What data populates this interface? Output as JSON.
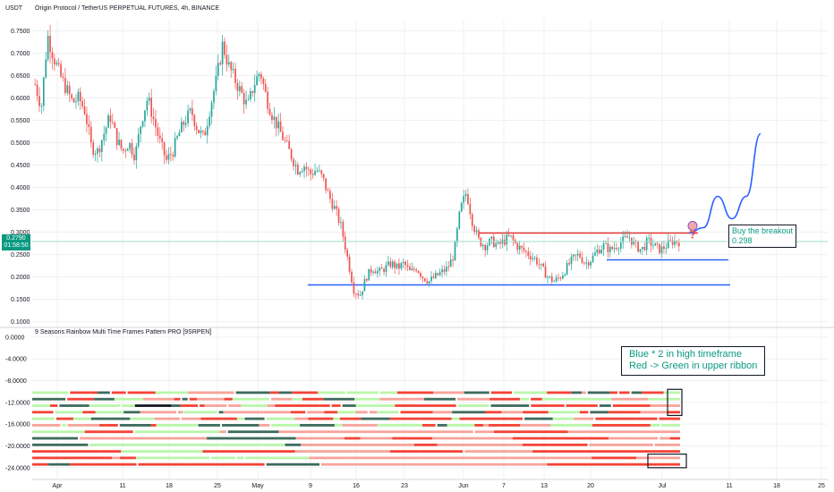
{
  "header": {
    "title": "Origin Protocol / TetherUS PERPETUAL FUTURES, 4h, BINANCE",
    "currency": "USDT"
  },
  "price_tag": {
    "price": "0.2790",
    "countdown": "01:58:50"
  },
  "indicator": {
    "title": "9 Seasons Rainbow Multi Time Frames Pattern PRO [9SRPEN]"
  },
  "annotations": {
    "breakout_line1": "Buy the breakout",
    "breakout_line2": "0.298",
    "question_mark": "?",
    "note_line1": "Blue * 2 in high timeframe",
    "note_line2": "Red -> Green in upper ribbon"
  },
  "colors": {
    "up": "#26a69a",
    "down": "#ef5350",
    "resistance": "#e53935",
    "support": "#2962ff",
    "projection": "#2962ff",
    "ribbon_red": "#f44336",
    "ribbon_salmon": "#f8a39b",
    "ribbon_lightgreen": "#b9f6a9",
    "ribbon_darkgreen": "#3d6b5e",
    "ribbon_black": "#131722"
  },
  "chart_data": [
    {
      "type": "candlestick",
      "title": "Origin Protocol / TetherUS PERPETUAL FUTURES, 4h, BINANCE",
      "ylabel": "USDT",
      "ylim": [
        0.095,
        0.775
      ],
      "y_ticks": [
        "0.7500",
        "0.7000",
        "0.6500",
        "0.6000",
        "0.5500",
        "0.5000",
        "0.4500",
        "0.4000",
        "0.3500",
        "0.3000",
        "0.2500",
        "0.2000",
        "0.1500",
        "0.1000"
      ],
      "x_ticks": [
        "Apr",
        "11",
        "18",
        "25",
        "May",
        "9",
        "16",
        "23",
        "Jun",
        "7",
        "13",
        "20",
        "Jul",
        "11",
        "18",
        "25"
      ],
      "last_price": 0.279,
      "price_path": [
        [
          0,
          0.63
        ],
        [
          1,
          0.58
        ],
        [
          2,
          0.74
        ],
        [
          3,
          0.69
        ],
        [
          4,
          0.65
        ],
        [
          5,
          0.62
        ],
        [
          6,
          0.59
        ],
        [
          7,
          0.6
        ],
        [
          8,
          0.57
        ],
        [
          9,
          0.49
        ],
        [
          10,
          0.48
        ],
        [
          11,
          0.52
        ],
        [
          12,
          0.56
        ],
        [
          13,
          0.51
        ],
        [
          14,
          0.48
        ],
        [
          15,
          0.5
        ],
        [
          16,
          0.47
        ],
        [
          17,
          0.55
        ],
        [
          18,
          0.6
        ],
        [
          19,
          0.55
        ],
        [
          20,
          0.5
        ],
        [
          21,
          0.46
        ],
        [
          22,
          0.48
        ],
        [
          23,
          0.52
        ],
        [
          24,
          0.55
        ],
        [
          25,
          0.57
        ],
        [
          26,
          0.53
        ],
        [
          27,
          0.51
        ],
        [
          28,
          0.58
        ],
        [
          29,
          0.64
        ],
        [
          30,
          0.72
        ],
        [
          31,
          0.67
        ],
        [
          32,
          0.64
        ],
        [
          33,
          0.61
        ],
        [
          34,
          0.58
        ],
        [
          35,
          0.63
        ],
        [
          36,
          0.66
        ],
        [
          37,
          0.6
        ],
        [
          38,
          0.56
        ],
        [
          39,
          0.53
        ],
        [
          40,
          0.5
        ],
        [
          41,
          0.47
        ],
        [
          42,
          0.44
        ],
        [
          43,
          0.45
        ],
        [
          44,
          0.43
        ],
        [
          45,
          0.44
        ],
        [
          46,
          0.42
        ],
        [
          47,
          0.38
        ],
        [
          48,
          0.35
        ],
        [
          49,
          0.31
        ],
        [
          50,
          0.24
        ],
        [
          51,
          0.17
        ],
        [
          52,
          0.16
        ],
        [
          53,
          0.2
        ],
        [
          54,
          0.22
        ],
        [
          55,
          0.21
        ],
        [
          56,
          0.22
        ],
        [
          57,
          0.23
        ],
        [
          58,
          0.22
        ],
        [
          59,
          0.23
        ],
        [
          60,
          0.21
        ],
        [
          61,
          0.22
        ],
        [
          62,
          0.2
        ],
        [
          63,
          0.19
        ],
        [
          64,
          0.2
        ],
        [
          65,
          0.21
        ],
        [
          66,
          0.22
        ],
        [
          67,
          0.25
        ],
        [
          68,
          0.35
        ],
        [
          69,
          0.39
        ],
        [
          70,
          0.32
        ],
        [
          71,
          0.28
        ],
        [
          72,
          0.27
        ],
        [
          73,
          0.28
        ],
        [
          74,
          0.27
        ],
        [
          75,
          0.28
        ],
        [
          76,
          0.29
        ],
        [
          77,
          0.27
        ],
        [
          78,
          0.26
        ],
        [
          79,
          0.25
        ],
        [
          80,
          0.24
        ],
        [
          81,
          0.22
        ],
        [
          82,
          0.2
        ],
        [
          83,
          0.19
        ],
        [
          84,
          0.2
        ],
        [
          85,
          0.22
        ],
        [
          86,
          0.24
        ],
        [
          87,
          0.25
        ],
        [
          88,
          0.23
        ],
        [
          89,
          0.24
        ],
        [
          90,
          0.26
        ],
        [
          91,
          0.27
        ],
        [
          92,
          0.26
        ],
        [
          93,
          0.27
        ],
        [
          94,
          0.28
        ],
        [
          95,
          0.29
        ],
        [
          96,
          0.27
        ],
        [
          97,
          0.26
        ],
        [
          98,
          0.28
        ],
        [
          99,
          0.27
        ],
        [
          100,
          0.26
        ],
        [
          101,
          0.27
        ],
        [
          102,
          0.28
        ],
        [
          103,
          0.279
        ]
      ],
      "levels": [
        {
          "name": "resistance",
          "value": 0.298
        },
        {
          "name": "upper support",
          "value": 0.238
        },
        {
          "name": "lower support",
          "value": 0.182
        }
      ],
      "projection": [
        [
          0,
          0.298
        ],
        [
          1,
          0.31
        ],
        [
          2,
          0.38
        ],
        [
          3,
          0.33
        ],
        [
          4,
          0.38
        ],
        [
          5,
          0.52
        ]
      ],
      "grid": true
    },
    {
      "type": "ribbon",
      "title": "9 Seasons Rainbow Multi Time Frames Pattern PRO [9SRPEN]",
      "ylim": [
        -26,
        0.8
      ],
      "y_ticks": [
        "0.0000",
        "-4.0000",
        "-8.0000",
        "-12.0000",
        "-16.0000",
        "-20.0000",
        "-24.0000"
      ],
      "rows": [
        -10.2,
        -11.4,
        -12.6,
        -13.8,
        -15,
        -16.2,
        -17.4,
        -18.6,
        -19.8,
        -21,
        -22.2,
        -23.4
      ]
    }
  ]
}
